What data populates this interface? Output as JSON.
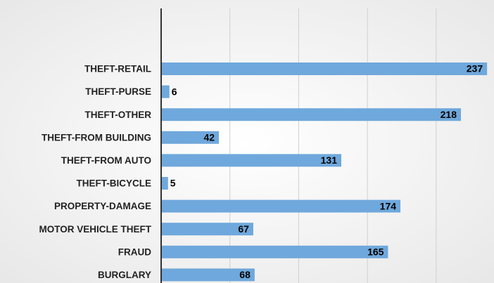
{
  "chart_data": {
    "type": "bar",
    "orientation": "horizontal",
    "categories": [
      "THEFT-RETAIL",
      "THEFT-PURSE",
      "THEFT-OTHER",
      "THEFT-FROM BUILDING",
      "THEFT-FROM AUTO",
      "THEFT-BICYCLE",
      "PROPERTY-DAMAGE",
      "MOTOR VEHICLE THEFT",
      "FRAUD",
      "BURGLARY"
    ],
    "values": [
      237,
      6,
      218,
      42,
      131,
      5,
      174,
      67,
      165,
      68
    ],
    "color": "#6fa8dc",
    "xlim": [
      0,
      240
    ],
    "xticks": [
      0,
      50,
      100,
      150,
      200
    ],
    "grid": true
  }
}
